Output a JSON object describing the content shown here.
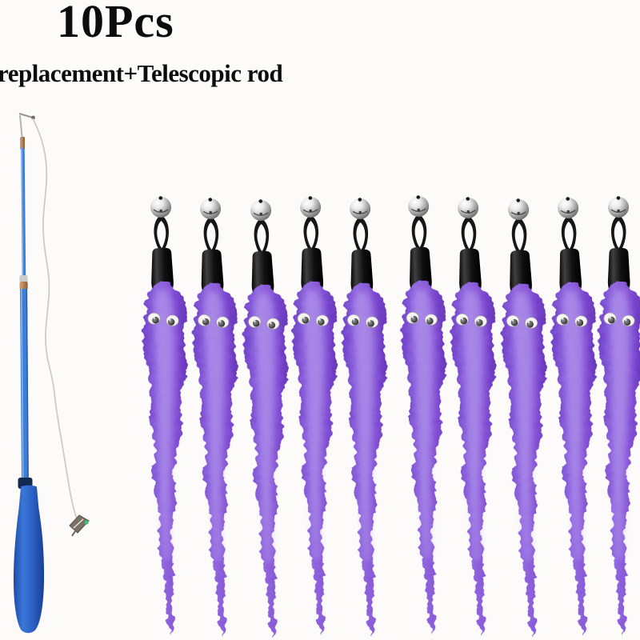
{
  "page": {
    "background": "#fcfbfa"
  },
  "header": {
    "quantity": "10Pcs",
    "subtitle": "replacement+Telescopic rod"
  },
  "product": {
    "teaser_count": 10,
    "items": [
      {
        "name": "telescopic-rod",
        "color": "blue",
        "count": 1,
        "details": "telescopic wand with string and metal clip, foam handle"
      },
      {
        "name": "worm-teaser-refill",
        "color": "purple",
        "count": 10,
        "details": "plush worm with jingle bell, black cord loop, black cap and googly eyes"
      }
    ]
  },
  "colors": {
    "background": "#fcfbfa",
    "text": "#0c0c0c",
    "worm_purple": "#8a5ad8",
    "worm_purple_light": "#b9a0ef",
    "worm_purple_dark": "#6636b8",
    "rod_blue": "#3e7ed8",
    "handle_blue": "#2e63c8",
    "bell_silver": "#b5b5b5",
    "cap_black": "#101010",
    "string": "#ccc5bd",
    "copper_joint": "#b5835a"
  }
}
